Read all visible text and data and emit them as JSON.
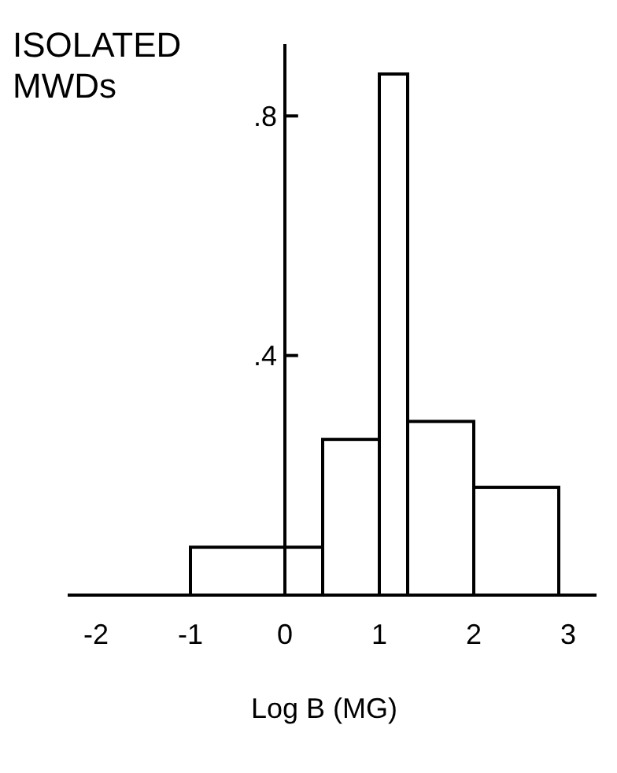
{
  "chart_data": {
    "type": "histogram",
    "title": "ISOLATED MWDs",
    "xlabel": "Log B (MG)",
    "bins": [
      -1,
      0,
      0.4,
      1,
      1.3,
      2,
      2.9
    ],
    "values": [
      0.08,
      0.08,
      0.26,
      0.87,
      0.29,
      0.18
    ],
    "color": "#ffffff",
    "xlim": [
      -2.3,
      3.3
    ],
    "xticks": [
      -2,
      -1,
      0,
      1,
      2,
      3
    ],
    "ylim": [
      0,
      0.92
    ],
    "yticks": [
      {
        "value": 0.4,
        "label": ".4"
      },
      {
        "value": 0.8,
        "label": ".8"
      }
    ],
    "grid": false
  }
}
